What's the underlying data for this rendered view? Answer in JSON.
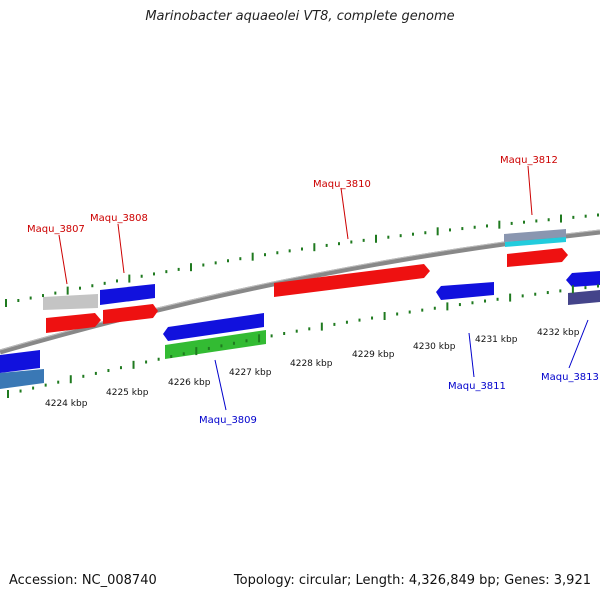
{
  "title": "Marinobacter aquaeolei VT8, complete genome",
  "footer": {
    "accession": "Accession: NC_008740",
    "summary": "Topology: circular; Length: 4,326,849 bp; Genes: 3,921"
  },
  "axis": {
    "tick_labels": [
      "4224 kbp",
      "4225 kbp",
      "4226 kbp",
      "4227 kbp",
      "4228 kbp",
      "4229 kbp",
      "4230 kbp",
      "4231 kbp",
      "4232 kbp"
    ]
  },
  "gene_labels": {
    "forward": [
      "Maqu_3807",
      "Maqu_3808",
      "Maqu_3810",
      "Maqu_3812"
    ],
    "reverse": [
      "Maqu_3809",
      "Maqu_3811",
      "Maqu_3813"
    ]
  },
  "colors": {
    "forward_label": "#cc0000",
    "reverse_label": "#0000cc",
    "tick": "#1f7a1f",
    "backbone": "#888888",
    "red": "#ee1111",
    "blue": "#1111dd",
    "grey": "#c4c4c4",
    "green": "#33bb33",
    "steelblue": "#3a78b5",
    "cyan": "#22ccdd",
    "slate": "#44448a"
  }
}
